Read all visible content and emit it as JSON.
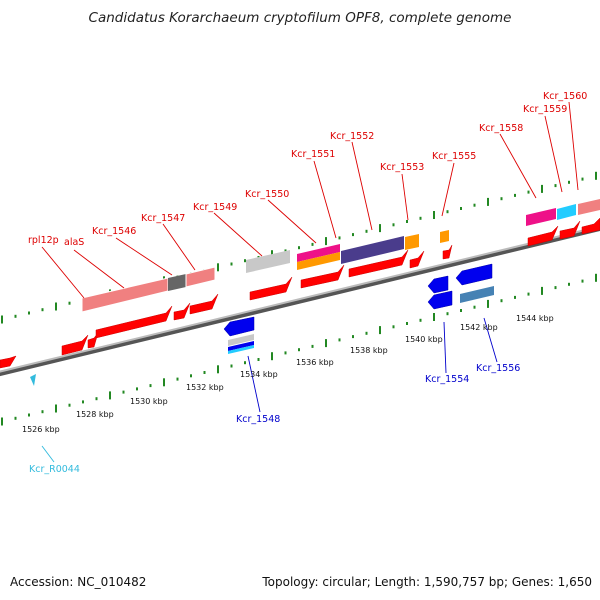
{
  "title": "Candidatus Korarchaeum cryptofilum OPF8, complete genome",
  "footer": {
    "accession": "Accession: NC_010482",
    "info": "Topology: circular; Length: 1,590,757 bp; Genes: 1,650"
  },
  "colors": {
    "red_gene": "#ff0000",
    "blue_gene": "#0000ee",
    "label_red": "#dd0000",
    "label_blue": "#0000cc",
    "label_cyan": "#33bbdd",
    "axis_gray": "#888888",
    "tick_green": "#228822",
    "pink_cog": "#f08080",
    "gray_cog": "#666666",
    "lightgray_cog": "#c8c8c8",
    "magenta_cog": "#ee1188",
    "orange_cog": "#ff9900",
    "purple_cog": "#4a3c8c",
    "cyan_cog": "#22ccff",
    "steelblue_cog": "#4682b4"
  },
  "kbp_labels": [
    "1526 kbp",
    "1528 kbp",
    "1530 kbp",
    "1532 kbp",
    "1534 kbp",
    "1536 kbp",
    "1538 kbp",
    "1540 kbp",
    "1542 kbp",
    "1544 kbp"
  ],
  "gene_labels": [
    {
      "text": "rpl12p",
      "color": "red"
    },
    {
      "text": "alaS",
      "color": "red"
    },
    {
      "text": "Kcr_1546",
      "color": "red"
    },
    {
      "text": "Kcr_1547",
      "color": "red"
    },
    {
      "text": "Kcr_1549",
      "color": "red"
    },
    {
      "text": "Kcr_1550",
      "color": "red"
    },
    {
      "text": "Kcr_1551",
      "color": "red"
    },
    {
      "text": "Kcr_1552",
      "color": "red"
    },
    {
      "text": "Kcr_1553",
      "color": "red"
    },
    {
      "text": "Kcr_1555",
      "color": "red"
    },
    {
      "text": "Kcr_1558",
      "color": "red"
    },
    {
      "text": "Kcr_1559",
      "color": "red"
    },
    {
      "text": "Kcr_1560",
      "color": "red"
    },
    {
      "text": "Kcr_1548",
      "color": "blue"
    },
    {
      "text": "Kcr_1554",
      "color": "blue"
    },
    {
      "text": "Kcr_1556",
      "color": "blue"
    },
    {
      "text": "Kcr_R0044",
      "color": "cyan"
    }
  ]
}
